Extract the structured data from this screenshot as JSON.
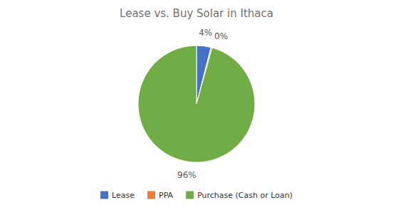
{
  "chart_data": {
    "type": "pie",
    "title": "Lease vs. Buy Solar in Ithaca",
    "categories": [
      "Lease",
      "PPA",
      "Purchase (Cash or Loan)"
    ],
    "values": [
      4,
      0.3,
      95.7
    ],
    "value_labels": [
      "4%",
      "0%",
      "96%"
    ],
    "colors": [
      "#4472C4",
      "#ED7D31",
      "#70AD47"
    ],
    "data_labels": true,
    "legend": "bottom"
  }
}
